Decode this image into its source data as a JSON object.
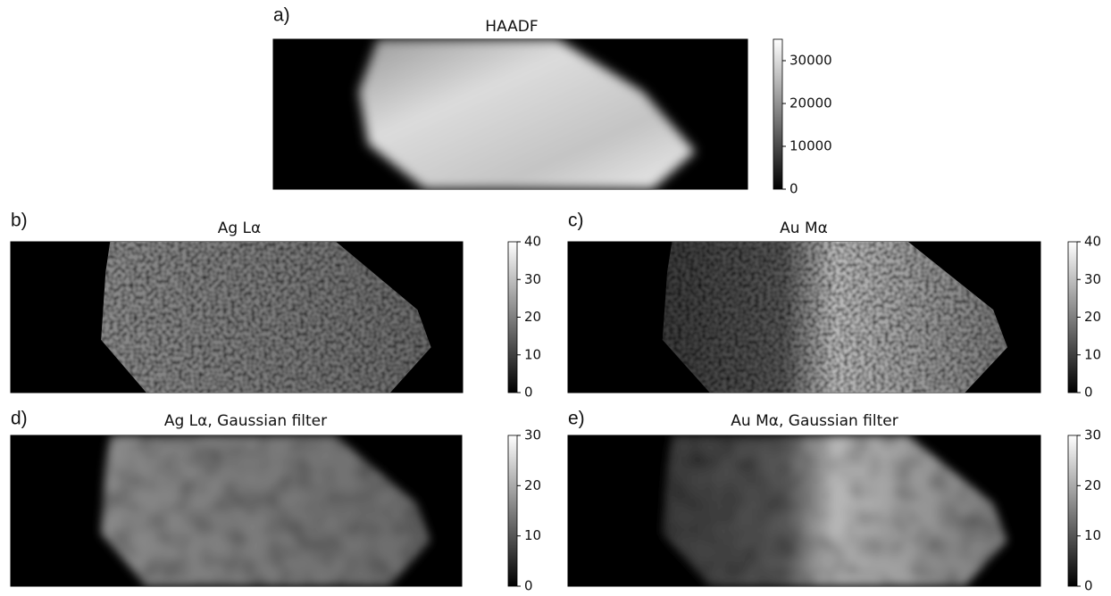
{
  "chart_data": [
    {
      "type": "heatmap",
      "panel_label": "a)",
      "title": "HAADF",
      "zlim": [
        0,
        35000
      ],
      "zticks": [
        0,
        10000,
        20000,
        30000
      ]
    },
    {
      "type": "heatmap",
      "panel_label": "b)",
      "title": "Ag Lα",
      "zlim": [
        0,
        40
      ],
      "zticks": [
        0,
        10,
        20,
        30,
        40
      ]
    },
    {
      "type": "heatmap",
      "panel_label": "c)",
      "title": "Au Mα",
      "zlim": [
        0,
        40
      ],
      "zticks": [
        0,
        10,
        20,
        30,
        40
      ]
    },
    {
      "type": "heatmap",
      "panel_label": "d)",
      "title": "Ag Lα, Gaussian filter",
      "zlim": [
        0,
        30
      ],
      "zticks": [
        0,
        10,
        20,
        30
      ]
    },
    {
      "type": "heatmap",
      "panel_label": "e)",
      "title": "Au Mα, Gaussian filter",
      "zlim": [
        0,
        30
      ],
      "zticks": [
        0,
        10,
        20,
        30
      ]
    }
  ]
}
